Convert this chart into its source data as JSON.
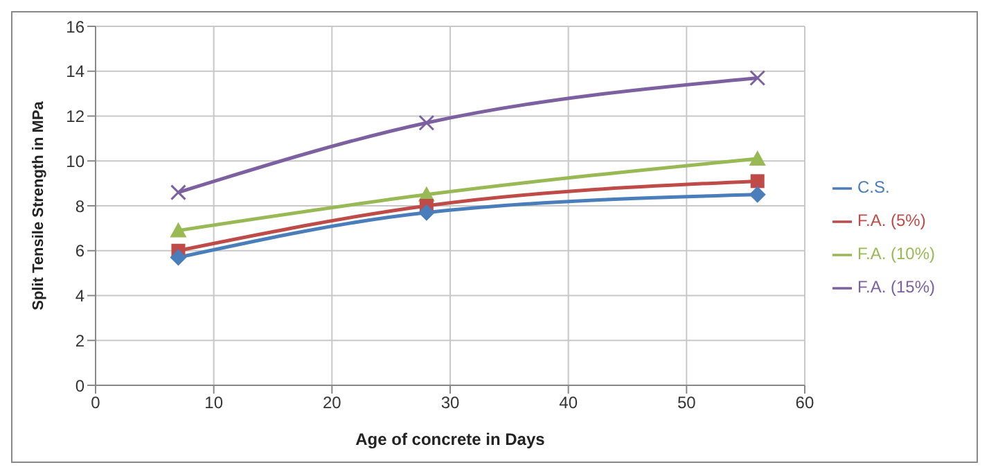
{
  "chart_data": {
    "type": "line",
    "xlabel": "Age of concrete in Days",
    "ylabel": "Split Tensile Strength in MPa",
    "x": [
      7,
      28,
      56
    ],
    "series": [
      {
        "name": "C.S.",
        "color": "#4a7ebb",
        "marker": "diamond",
        "values": [
          5.7,
          7.7,
          8.5
        ]
      },
      {
        "name": "F.A. (5%)",
        "color": "#be4b48",
        "marker": "square",
        "values": [
          6.0,
          8.0,
          9.1
        ]
      },
      {
        "name": "F.A. (10%)",
        "color": "#98b954",
        "marker": "triangle",
        "values": [
          6.9,
          8.5,
          10.1
        ]
      },
      {
        "name": "F.A. (15%)",
        "color": "#7d60a0",
        "marker": "cross",
        "values": [
          8.6,
          11.7,
          13.7
        ]
      }
    ],
    "xlim": [
      0,
      60
    ],
    "xticks": [
      0,
      10,
      20,
      30,
      40,
      50,
      60
    ],
    "ylim": [
      0,
      16
    ],
    "yticks": [
      0,
      2,
      4,
      6,
      8,
      10,
      12,
      14,
      16
    ],
    "grid": true,
    "legend": "right"
  }
}
